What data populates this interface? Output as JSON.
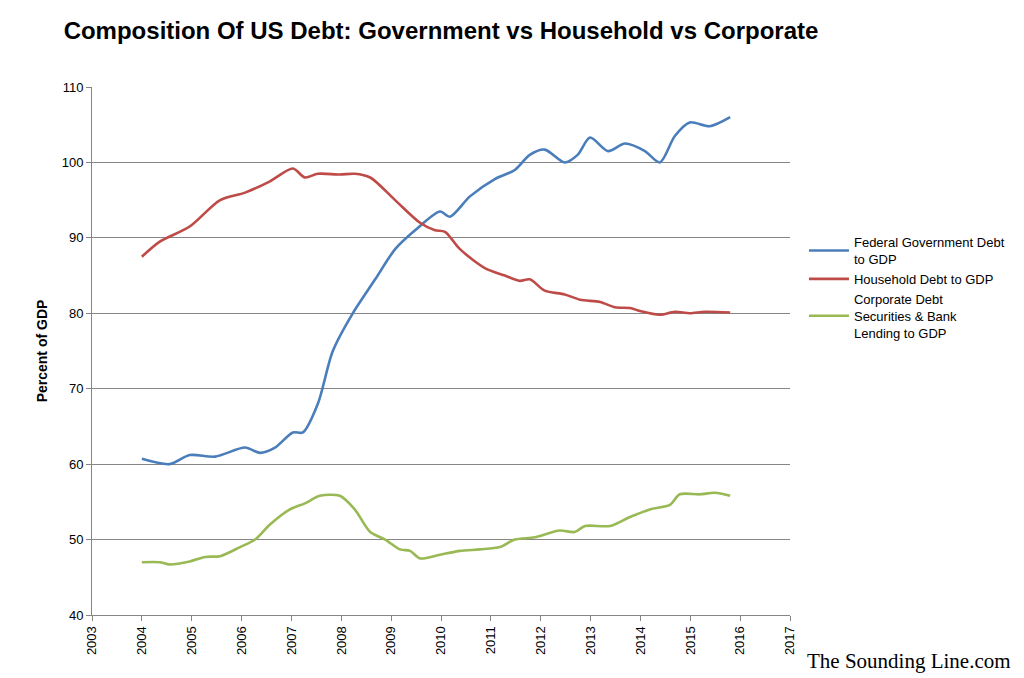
{
  "chart_data": {
    "type": "line",
    "title": "Composition Of US Debt: Government vs Household vs Corporate",
    "y_label": "Percent of GDP",
    "watermark": "The Sounding Line.com",
    "xlim": [
      2003,
      2017
    ],
    "xticks": [
      2003,
      2004,
      2005,
      2006,
      2007,
      2008,
      2009,
      2010,
      2011,
      2012,
      2013,
      2014,
      2015,
      2016,
      2017
    ],
    "ylim": [
      40,
      110
    ],
    "yticks": [
      40,
      50,
      60,
      70,
      80,
      90,
      100,
      110
    ],
    "grid": true,
    "legend": "right",
    "series": [
      {
        "name": "Federal Government Debt to GDP",
        "color": "#4a7ebb",
        "x": [
          2004.0,
          2004.56,
          2004.96,
          2005.47,
          2006.07,
          2006.37,
          2006.67,
          2007.03,
          2007.23,
          2007.53,
          2007.83,
          2008.23,
          2008.68,
          2009.08,
          2009.48,
          2009.98,
          2010.18,
          2010.58,
          2011.08,
          2011.48,
          2011.78,
          2012.08,
          2012.48,
          2012.74,
          2012.99,
          2013.35,
          2013.69,
          2014.09,
          2014.39,
          2014.69,
          2014.99,
          2015.39,
          2015.8
        ],
        "values": [
          60.7,
          60.0,
          61.2,
          61.0,
          62.2,
          61.5,
          62.2,
          64.2,
          64.2,
          68.0,
          75.0,
          80.0,
          84.5,
          88.5,
          91.0,
          93.5,
          92.8,
          95.5,
          97.8,
          99.0,
          101.0,
          101.7,
          100.0,
          101.0,
          103.3,
          101.5,
          102.5,
          101.5,
          100.0,
          103.5,
          105.3,
          104.8,
          106.0
        ]
      },
      {
        "name": "Household Debt to GDP",
        "color": "#be4b48",
        "x": [
          2004.0,
          2004.36,
          2004.96,
          2005.57,
          2006.07,
          2006.57,
          2007.03,
          2007.27,
          2007.53,
          2007.97,
          2008.27,
          2008.58,
          2009.08,
          2009.58,
          2009.88,
          2010.08,
          2010.38,
          2010.88,
          2011.28,
          2011.58,
          2011.78,
          2012.08,
          2012.48,
          2012.79,
          2013.19,
          2013.49,
          2013.79,
          2013.99,
          2014.39,
          2014.69,
          2014.99,
          2015.29,
          2015.8
        ],
        "values": [
          87.5,
          89.5,
          91.5,
          95.0,
          96.0,
          97.5,
          99.2,
          98.0,
          98.5,
          98.4,
          98.5,
          98.0,
          95.0,
          92.0,
          91.0,
          90.8,
          88.5,
          86.0,
          85.0,
          84.3,
          84.5,
          83.0,
          82.5,
          81.8,
          81.5,
          80.8,
          80.7,
          80.3,
          79.8,
          80.2,
          80.0,
          80.2,
          80.1
        ]
      },
      {
        "name": "Corporate Debt Securities & Bank Lending to GDP",
        "color": "#98b954",
        "x": [
          2004.0,
          2004.36,
          2004.56,
          2004.96,
          2005.27,
          2005.57,
          2005.97,
          2006.27,
          2006.57,
          2006.97,
          2007.27,
          2007.57,
          2007.97,
          2008.27,
          2008.58,
          2008.88,
          2009.18,
          2009.38,
          2009.58,
          2009.98,
          2010.38,
          2010.78,
          2011.18,
          2011.48,
          2011.88,
          2012.38,
          2012.68,
          2012.89,
          2013.39,
          2013.79,
          2014.19,
          2014.59,
          2014.79,
          2015.19,
          2015.49,
          2015.8
        ],
        "values": [
          47.0,
          47.0,
          46.7,
          47.1,
          47.7,
          47.8,
          49.0,
          50.0,
          52.0,
          54.0,
          54.8,
          55.8,
          55.8,
          54.0,
          51.0,
          50.0,
          48.7,
          48.5,
          47.5,
          48.0,
          48.5,
          48.7,
          49.0,
          50.0,
          50.3,
          51.2,
          51.0,
          51.8,
          51.8,
          53.0,
          54.0,
          54.6,
          56.0,
          56.0,
          56.2,
          55.8
        ]
      }
    ]
  }
}
